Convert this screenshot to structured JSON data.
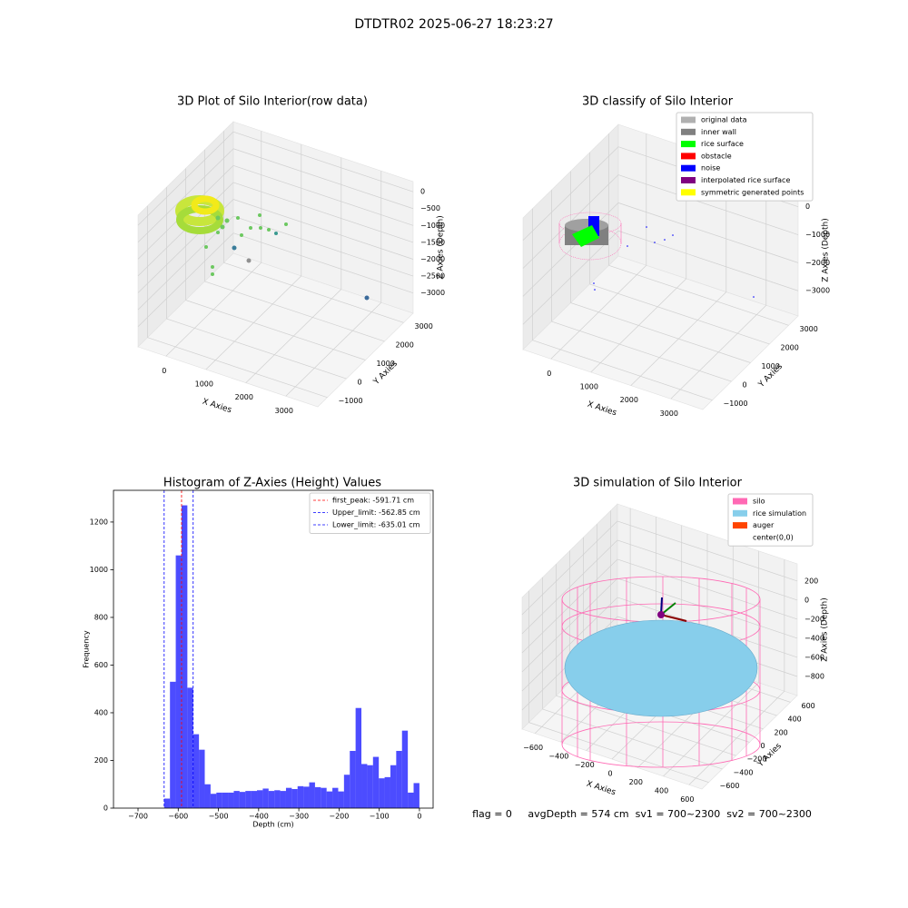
{
  "title": "DTDTR02 2025-06-27 18:23:27",
  "footer": "flag = 0     avgDepth = 574 cm  sv1 = 700~2300  sv2 = 700~2300",
  "chart_data": [
    {
      "type": "scatter3d",
      "title": "3D Plot of Silo Interior(row data)",
      "xlabel": "X Axies",
      "ylabel": "Y Axies",
      "zlabel": "Z Axies (Depth)",
      "xlim": [
        -700,
        3800
      ],
      "ylim": [
        -1500,
        3500
      ],
      "zlim": [
        -3600,
        300
      ],
      "xticks": [
        0,
        1000,
        2000,
        3000
      ],
      "yticks": [
        {
          "value": -1000,
          "label": "−1000"
        },
        0,
        1000,
        2000,
        3000
      ],
      "zticks": [
        0,
        {
          "value": -500,
          "label": "−500"
        },
        {
          "value": -1000,
          "label": "−1000"
        },
        {
          "value": -1500,
          "label": "−1500"
        },
        {
          "value": -2000,
          "label": "−2000"
        },
        {
          "value": -2500,
          "label": "−2500"
        },
        {
          "value": -3000,
          "label": "−3000"
        }
      ]
    },
    {
      "type": "scatter3d",
      "title": "3D classify of Silo Interior",
      "xlabel": "X Axies",
      "ylabel": "Y Axies",
      "zlabel": "Z Axies (Depth)",
      "xlim": [
        -700,
        3800
      ],
      "ylim": [
        -1500,
        3500
      ],
      "zlim": [
        -3900,
        800
      ],
      "xticks": [
        0,
        1000,
        2000,
        3000
      ],
      "yticks": [
        {
          "value": -1000,
          "label": "−1000"
        },
        0,
        1000,
        2000,
        3000
      ],
      "zticks": [
        0,
        {
          "value": -1000,
          "label": "−1000"
        },
        {
          "value": -2000,
          "label": "−2000"
        },
        {
          "value": -3000,
          "label": "−3000"
        }
      ],
      "legend": [
        {
          "name": "original data",
          "color": "#b0b0b0"
        },
        {
          "name": "inner wall",
          "color": "#808080"
        },
        {
          "name": "rice surface",
          "color": "#00ff00"
        },
        {
          "name": "obstacle",
          "color": "#ff0000"
        },
        {
          "name": "noise",
          "color": "#0000ff"
        },
        {
          "name": "interpolated rice surface",
          "color": "#800080"
        },
        {
          "name": "symmetric generated points",
          "color": "#ffff00"
        }
      ]
    },
    {
      "type": "histogram",
      "title": "Histogram of Z-Axies (Height) Values",
      "xlabel": "Depth (cm)",
      "ylabel": "Frequency",
      "color": "#0000ff",
      "xlim": [
        -761,
        34
      ],
      "ylim": [
        0,
        1333
      ],
      "xticks": [
        {
          "value": -700,
          "label": "−700"
        },
        {
          "value": -600,
          "label": "−600"
        },
        {
          "value": -500,
          "label": "−500"
        },
        {
          "value": -400,
          "label": "−400"
        },
        {
          "value": -300,
          "label": "−300"
        },
        {
          "value": -200,
          "label": "−200"
        },
        {
          "value": -100,
          "label": "−100"
        },
        0
      ],
      "yticks": [
        0,
        200,
        400,
        600,
        800,
        1000,
        1200
      ],
      "bins": [
        -635.0,
        -620.57,
        -606.14,
        -591.71,
        -577.28,
        -562.85,
        -548.42,
        -533.99,
        -519.56,
        -505.13,
        -490.7,
        -476.27,
        -461.84,
        -447.41,
        -432.98,
        -418.55,
        -404.12,
        -389.69,
        -375.26,
        -360.83,
        -346.4,
        -331.97,
        -317.54,
        -303.11,
        -288.68,
        -274.25,
        -259.82,
        -245.39,
        -230.96,
        -216.53,
        -202.1,
        -187.67,
        -173.24,
        -158.81,
        -144.38,
        -129.95,
        -115.52,
        -101.09,
        -86.66,
        -72.23,
        -57.8,
        -43.37,
        -28.94,
        -14.51,
        -0.08
      ],
      "values": [
        40,
        530,
        1060,
        1270,
        505,
        310,
        245,
        100,
        60,
        65,
        65,
        65,
        72,
        68,
        72,
        72,
        75,
        82,
        72,
        75,
        72,
        85,
        80,
        92,
        90,
        108,
        88,
        85,
        70,
        85,
        70,
        140,
        240,
        420,
        185,
        180,
        215,
        125,
        130,
        180,
        240,
        325,
        65,
        105
      ],
      "lines": [
        {
          "name": "first_peak: -591.71 cm",
          "value": -591.71,
          "color": "#ff0000"
        },
        {
          "name": "Upper_limit: -562.85 cm",
          "value": -562.85,
          "color": "#0000ff"
        },
        {
          "name": "Lower_limit: -635.01 cm",
          "value": -635.01,
          "color": "#0000ff"
        }
      ]
    },
    {
      "type": "surface3d",
      "title": "3D simulation of Silo Interior",
      "xlabel": "X Axies",
      "ylabel": "Y Axies",
      "zlabel": "Z Axies (Depth)",
      "xlim": [
        -700,
        700
      ],
      "ylim": [
        -700,
        700
      ],
      "zlim": [
        -1000,
        380
      ],
      "xticks": [
        {
          "value": -600,
          "label": "−600"
        },
        {
          "value": -400,
          "label": "−400"
        },
        {
          "value": -200,
          "label": "−200"
        },
        0,
        200,
        400,
        600
      ],
      "yticks": [
        {
          "value": -600,
          "label": "−600"
        },
        {
          "value": -400,
          "label": "−400"
        },
        {
          "value": -200,
          "label": "−200"
        },
        0,
        200,
        400,
        600
      ],
      "zticks": [
        200,
        0,
        {
          "value": -200,
          "label": "−200"
        },
        {
          "value": -400,
          "label": "−400"
        },
        {
          "value": -600,
          "label": "−600"
        },
        {
          "value": -800,
          "label": "−800"
        }
      ],
      "legend": [
        {
          "name": "silo",
          "color": "#ff69b4"
        },
        {
          "name": "rice simulation",
          "color": "#87ceeb"
        },
        {
          "name": "auger",
          "color": "#ff4500"
        },
        {
          "name": "center(0,0)",
          "color": "#ffffff"
        }
      ]
    }
  ]
}
